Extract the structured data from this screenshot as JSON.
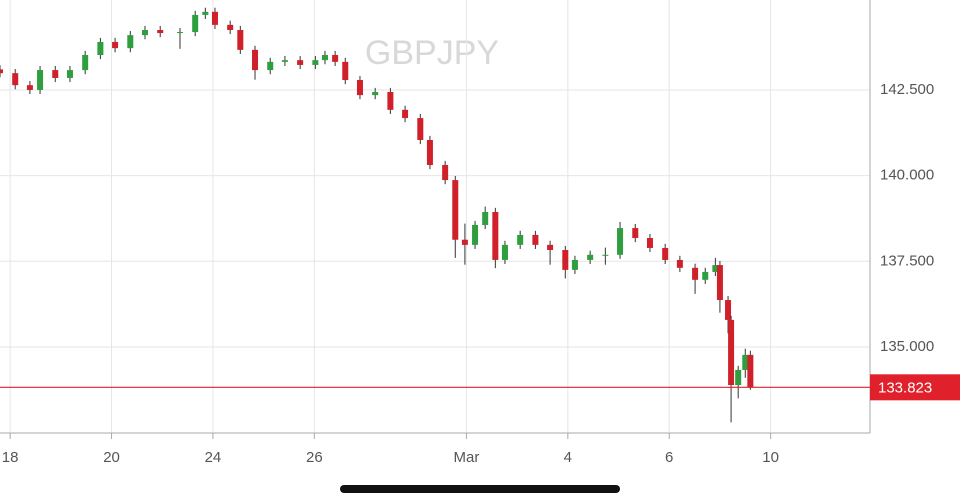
{
  "chart_data": {
    "type": "candlestick",
    "title": "GBPJPY",
    "x": [
      -0.2,
      0.1,
      0.39,
      0.59,
      0.89,
      1.18,
      1.48,
      1.78,
      2.07,
      2.37,
      2.66,
      2.96,
      3.35,
      3.65,
      3.85,
      4.04,
      4.34,
      4.54,
      4.83,
      5.13,
      5.42,
      5.72,
      6.02,
      6.21,
      6.41,
      6.61,
      6.9,
      7.2,
      7.5,
      7.79,
      8.09,
      8.28,
      8.58,
      8.78,
      8.97,
      9.17,
      9.37,
      9.57,
      9.76,
      10.06,
      10.36,
      10.65,
      10.95,
      11.14,
      11.44,
      11.74,
      12.03,
      12.33,
      12.62,
      12.92,
      13.21,
      13.51,
      13.71,
      13.91,
      14.0,
      14.16,
      14.22,
      14.36,
      14.5,
      14.6
    ],
    "open": [
      143.1,
      142.99,
      142.64,
      142.5,
      143.08,
      142.85,
      143.08,
      143.52,
      143.9,
      143.72,
      144.1,
      144.25,
      144.16,
      144.19,
      144.69,
      144.78,
      144.4,
      144.25,
      143.67,
      143.08,
      143.32,
      143.37,
      143.23,
      143.37,
      143.52,
      143.32,
      142.79,
      142.35,
      142.44,
      141.92,
      141.68,
      141.04,
      140.31,
      139.87,
      138.13,
      137.98,
      138.56,
      138.94,
      137.54,
      137.98,
      138.27,
      137.98,
      137.83,
      137.25,
      137.54,
      137.69,
      137.69,
      138.47,
      138.18,
      137.89,
      137.54,
      137.31,
      136.96,
      137.19,
      137.39,
      136.37,
      135.79,
      133.89,
      134.33,
      134.77
    ],
    "high": [
      143.22,
      143.11,
      142.76,
      143.2,
      143.2,
      143.2,
      143.64,
      144.02,
      144.02,
      144.22,
      144.37,
      144.37,
      144.31,
      144.81,
      144.9,
      144.9,
      144.52,
      144.37,
      143.79,
      143.44,
      143.49,
      143.49,
      143.49,
      143.64,
      143.64,
      143.44,
      142.91,
      142.56,
      142.56,
      142.04,
      141.8,
      141.16,
      140.43,
      139.99,
      138.6,
      138.68,
      139.1,
      139.06,
      138.1,
      138.39,
      138.39,
      138.1,
      137.95,
      137.66,
      137.81,
      137.9,
      138.65,
      138.59,
      138.3,
      138.01,
      137.66,
      137.43,
      137.31,
      137.6,
      137.51,
      136.49,
      135.91,
      134.45,
      134.95,
      134.89
    ],
    "low": [
      142.87,
      142.52,
      142.38,
      142.38,
      142.73,
      142.73,
      142.96,
      143.4,
      143.6,
      143.6,
      143.98,
      144.04,
      143.7,
      144.07,
      144.57,
      144.28,
      144.13,
      143.55,
      142.8,
      142.96,
      143.2,
      143.11,
      143.11,
      143.25,
      143.2,
      142.67,
      142.23,
      142.23,
      141.8,
      141.56,
      140.92,
      140.19,
      139.75,
      137.6,
      137.4,
      137.86,
      138.44,
      137.3,
      137.42,
      137.86,
      137.86,
      137.4,
      137.0,
      137.13,
      137.42,
      137.4,
      137.57,
      138.06,
      137.77,
      137.42,
      137.19,
      136.55,
      136.84,
      137.07,
      136.0,
      135.4,
      132.8,
      133.5,
      134.1,
      133.75
    ],
    "close": [
      142.99,
      142.64,
      142.5,
      143.08,
      142.85,
      143.08,
      143.52,
      143.9,
      143.72,
      144.1,
      144.25,
      144.16,
      144.19,
      144.69,
      144.78,
      144.4,
      144.25,
      143.67,
      143.08,
      143.32,
      143.37,
      143.23,
      143.37,
      143.52,
      143.32,
      142.79,
      142.35,
      142.44,
      141.92,
      141.68,
      141.04,
      140.31,
      139.87,
      138.13,
      137.98,
      138.56,
      138.94,
      137.54,
      137.98,
      138.27,
      137.98,
      137.83,
      137.25,
      137.54,
      137.69,
      137.69,
      138.47,
      138.18,
      137.89,
      137.54,
      137.31,
      136.96,
      137.19,
      137.39,
      136.37,
      135.79,
      133.89,
      134.33,
      134.77,
      133.823
    ],
    "up_color": "#2e9e3e",
    "down_color": "#d0202a",
    "last_price": 133.823,
    "last_color": "#e0202a",
    "xlim": [
      -0.2,
      16.96
    ],
    "ylim": [
      132.49,
      145.125
    ],
    "xticks": [
      {
        "value": 0,
        "label": "18"
      },
      {
        "value": 2,
        "label": "20"
      },
      {
        "value": 4,
        "label": "24"
      },
      {
        "value": 6,
        "label": "26"
      },
      {
        "value": 9,
        "label": "Mar"
      },
      {
        "value": 11,
        "label": "4"
      },
      {
        "value": 13,
        "label": "6"
      },
      {
        "value": 15,
        "label": "10"
      }
    ],
    "yticks": [
      {
        "value": 135,
        "label": "135.000"
      },
      {
        "value": 137.5,
        "label": "137.500"
      },
      {
        "value": 140,
        "label": "140.000"
      },
      {
        "value": 142.5,
        "label": "142.500"
      }
    ],
    "grid": true
  }
}
